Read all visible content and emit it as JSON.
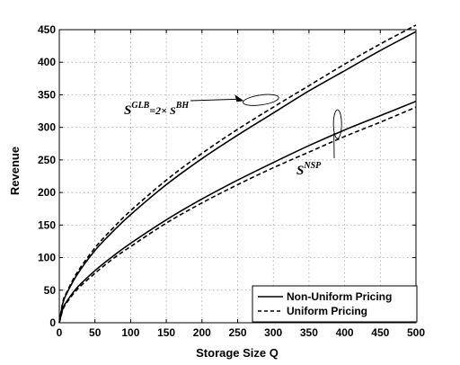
{
  "chart_data": {
    "type": "line",
    "xlabel": "Storage Size Q",
    "ylabel": "Revenue",
    "xlim": [
      0,
      500
    ],
    "ylim": [
      0,
      450
    ],
    "xticks": [
      0,
      50,
      100,
      150,
      200,
      250,
      300,
      350,
      400,
      450,
      500
    ],
    "yticks": [
      0,
      50,
      100,
      150,
      200,
      250,
      300,
      350,
      400,
      450
    ],
    "grid": true,
    "legend_position": "bottom-right",
    "x": [
      0,
      5,
      10,
      25,
      50,
      75,
      100,
      150,
      200,
      250,
      300,
      350,
      400,
      450,
      500
    ],
    "series": [
      {
        "name": "Non-Uniform Pricing",
        "style": "solid",
        "group": "GLB",
        "values": [
          0,
          30,
          44,
          74,
          111,
          140,
          166,
          212,
          252,
          288,
          322,
          356,
          387,
          418,
          447
        ]
      },
      {
        "name": "Uniform Pricing",
        "style": "dashed",
        "group": "GLB",
        "values": [
          0,
          32,
          46,
          77,
          115,
          145,
          172,
          219,
          260,
          297,
          331,
          364,
          397,
          428,
          457
        ]
      },
      {
        "name": "Non-Uniform Pricing",
        "style": "solid",
        "group": "NSP",
        "values": [
          0,
          22,
          32,
          54,
          80,
          102,
          122,
          158,
          190,
          219,
          246,
          272,
          296,
          318,
          340
        ]
      },
      {
        "name": "Uniform Pricing",
        "style": "dashed",
        "group": "NSP",
        "values": [
          0,
          20,
          30,
          51,
          76,
          98,
          117,
          153,
          184,
          212,
          238,
          262,
          286,
          308,
          331
        ]
      }
    ],
    "legend": [
      {
        "label": "Non-Uniform Pricing",
        "style": "solid"
      },
      {
        "label": "Uniform Pricing",
        "style": "dashed"
      }
    ],
    "annotations": {
      "glb": {
        "main": "S",
        "sup1": "GLB",
        "mid": "=2× S",
        "sup2": "BH",
        "target_x": 265,
        "target_y": 342
      },
      "nsp": {
        "main": "S",
        "sup1": "NSP",
        "target_x": 390,
        "target_y": 305
      }
    }
  }
}
